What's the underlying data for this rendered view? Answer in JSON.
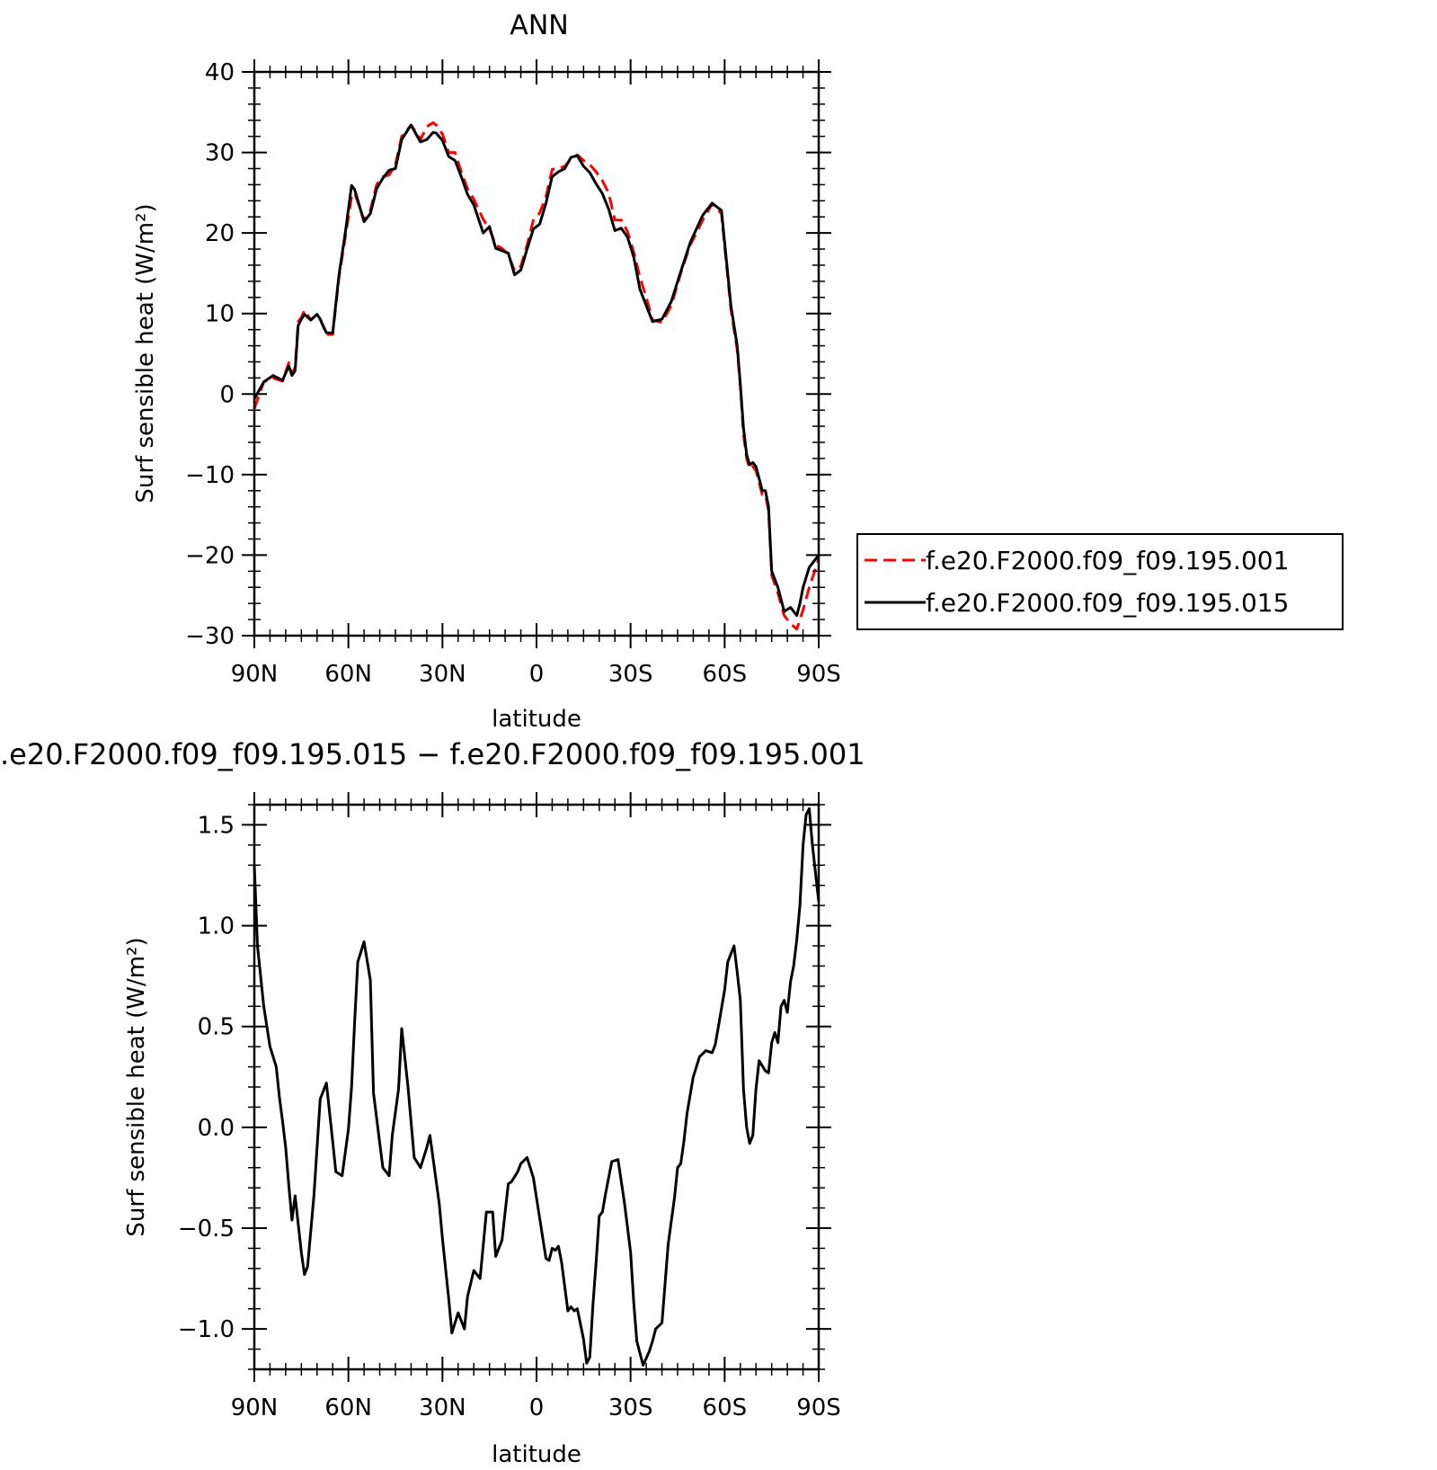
{
  "chart_data": [
    {
      "type": "line",
      "title": "ANN",
      "xlabel": "latitude",
      "ylabel": "Surf sensible heat (W/m²)",
      "xlim": [
        90,
        -90
      ],
      "ylim": [
        -30,
        40
      ],
      "x_ticks": [
        90,
        60,
        30,
        0,
        -30,
        -60,
        -90
      ],
      "x_tick_labels": [
        "90N",
        "60N",
        "30N",
        "0",
        "30S",
        "60S",
        "90S"
      ],
      "y_ticks": [
        -30,
        -20,
        -10,
        0,
        10,
        20,
        30,
        40
      ],
      "y_tick_labels": [
        "−30",
        "−20",
        "−10",
        "0",
        "10",
        "20",
        "30",
        "40"
      ],
      "legend_position": "right",
      "colors": {
        "red": "#ff0000",
        "black": "#000000"
      },
      "series": [
        {
          "name": "f.e20.F2000.f09_f09.195.001",
          "style": "dashed",
          "color": "#ff0000",
          "x": [
            90,
            87,
            84,
            81,
            79,
            78,
            77,
            76,
            75,
            74,
            72,
            70,
            69,
            67,
            65,
            63,
            61,
            59,
            58,
            55,
            53,
            51,
            49,
            47,
            45,
            43,
            40,
            38,
            37,
            35,
            33,
            32,
            30,
            28,
            26,
            24,
            22,
            20,
            17,
            15,
            13,
            11,
            9,
            7,
            5,
            3,
            1,
            -1,
            -3,
            -5,
            -7,
            -9,
            -11,
            -13,
            -15,
            -17,
            -19,
            -21,
            -23,
            -25,
            -27,
            -29,
            -31,
            -33,
            -35,
            -37,
            -40,
            -43,
            -46,
            -49,
            -51,
            -53,
            -56,
            -59,
            -62,
            -64,
            -65,
            -66,
            -67,
            -68,
            -69,
            -70,
            -71,
            -72,
            -73,
            -74,
            -75,
            -77,
            -79,
            -81,
            -83,
            -84,
            -85,
            -87,
            -90
          ],
          "y": [
            -1.8,
            1.5,
            2.0,
            1.6,
            3.9,
            2.5,
            3.3,
            9.0,
            9.5,
            10.4,
            9.2,
            9.9,
            9.3,
            7.4,
            7.4,
            14.5,
            19.5,
            24.5,
            25.0,
            21.6,
            22.8,
            26.0,
            27.0,
            27.2,
            28.5,
            32.0,
            33.4,
            32.3,
            31.6,
            33.2,
            33.7,
            33.4,
            32.3,
            30.0,
            30.0,
            27.6,
            25.5,
            24.2,
            21.7,
            20.5,
            18.5,
            18.1,
            17.3,
            15.3,
            15.9,
            18.5,
            21.6,
            22.5,
            24.5,
            27.9,
            28.0,
            28.3,
            29.2,
            29.7,
            29.0,
            28.5,
            27.6,
            26.5,
            25.0,
            21.6,
            21.6,
            20.2,
            17.6,
            14.5,
            12.0,
            9.2,
            8.9,
            11.0,
            15.0,
            18.5,
            20.0,
            21.6,
            23.6,
            22.4,
            10.5,
            5.5,
            1.0,
            -5.0,
            -8.0,
            -9.3,
            -9.0,
            -9.5,
            -11.0,
            -12.5,
            -12.5,
            -14.5,
            -22.5,
            -24.7,
            -27.5,
            -28.5,
            -29.2,
            -28.0,
            -26.8,
            -24.0,
            -20.5
          ]
        },
        {
          "name": "f.e20.F2000.f09_f09.195.015",
          "style": "solid",
          "color": "#000000",
          "x": [
            90,
            87,
            84,
            81,
            79,
            78,
            77,
            76,
            75,
            74,
            72,
            70,
            69,
            67,
            65,
            63,
            61,
            59,
            58,
            55,
            53,
            51,
            49,
            47,
            45,
            43,
            40,
            38,
            37,
            35,
            33,
            32,
            30,
            28,
            26,
            24,
            22,
            20,
            17,
            15,
            13,
            11,
            9,
            7,
            5,
            3,
            1,
            -1,
            -3,
            -5,
            -7,
            -9,
            -11,
            -13,
            -15,
            -17,
            -19,
            -21,
            -23,
            -25,
            -27,
            -29,
            -31,
            -33,
            -35,
            -37,
            -40,
            -43,
            -46,
            -49,
            -51,
            -53,
            -56,
            -59,
            -62,
            -64,
            -65,
            -66,
            -67,
            -68,
            -69,
            -70,
            -71,
            -72,
            -73,
            -74,
            -75,
            -77,
            -79,
            -81,
            -83,
            -84,
            -85,
            -87,
            -90
          ],
          "y": [
            -0.6,
            1.5,
            2.3,
            1.7,
            3.5,
            2.3,
            2.9,
            8.5,
            9.3,
            9.9,
            9.2,
            9.9,
            9.3,
            7.6,
            7.6,
            14.8,
            20.0,
            25.9,
            25.4,
            21.4,
            22.4,
            25.5,
            26.8,
            27.8,
            28.0,
            31.6,
            33.4,
            32.0,
            31.3,
            31.6,
            32.5,
            32.4,
            31.5,
            29.5,
            29.0,
            27.0,
            24.8,
            23.5,
            20.0,
            20.8,
            18.1,
            17.8,
            17.5,
            14.8,
            15.4,
            18.0,
            20.5,
            21.1,
            23.7,
            27.0,
            27.6,
            28.0,
            29.4,
            29.6,
            28.3,
            27.5,
            26.1,
            24.9,
            23.0,
            20.3,
            20.6,
            19.5,
            17.0,
            13.0,
            11.0,
            9.0,
            9.3,
            11.5,
            15.2,
            18.8,
            20.5,
            22.2,
            23.7,
            22.8,
            11.0,
            6.0,
            1.2,
            -4.2,
            -7.5,
            -8.8,
            -8.5,
            -9.0,
            -10.5,
            -12.0,
            -12.0,
            -14.0,
            -22.0,
            -24.0,
            -27.0,
            -26.5,
            -27.5,
            -26.0,
            -24.0,
            -21.5,
            -20.0
          ]
        }
      ]
    },
    {
      "type": "line",
      "title": ".e20.F2000.f09_f09.195.015 − f.e20.F2000.f09_f09.195.001",
      "xlabel": "latitude",
      "ylabel": "Surf sensible heat (W/m²)",
      "xlim": [
        90,
        -90
      ],
      "ylim": [
        -1.2,
        1.6
      ],
      "x_ticks": [
        90,
        60,
        30,
        0,
        -30,
        -60,
        -90
      ],
      "x_tick_labels": [
        "90N",
        "60N",
        "30N",
        "0",
        "30S",
        "60S",
        "90S"
      ],
      "y_ticks": [
        -1.0,
        -0.5,
        0.0,
        0.5,
        1.0,
        1.5
      ],
      "y_tick_labels": [
        "−1.0",
        "−0.5",
        "0.0",
        "0.5",
        "1.0",
        "1.5"
      ],
      "series": [
        {
          "color": "#000000",
          "x": [
            90,
            89,
            87,
            85,
            83,
            82,
            81,
            80,
            79,
            78,
            77,
            75,
            74,
            73,
            71,
            69,
            67,
            65,
            64,
            62,
            60,
            59,
            58,
            57,
            55,
            53,
            52,
            49,
            47,
            46,
            44,
            43,
            41,
            39,
            37,
            35,
            34,
            31,
            30,
            28,
            27,
            25,
            23,
            22,
            20,
            18,
            16,
            14,
            13,
            11,
            9,
            8,
            6,
            5,
            3,
            1,
            -1,
            -3,
            -4,
            -5,
            -6,
            -7,
            -8,
            -9,
            -10,
            -11,
            -12,
            -13,
            -15,
            -16,
            -17,
            -18,
            -19,
            -20,
            -21,
            -22,
            -24,
            -26,
            -28,
            -30,
            -31,
            -32,
            -34,
            -36,
            -37,
            -38,
            -40,
            -42,
            -44,
            -45,
            -46,
            -47,
            -48,
            -50,
            -52,
            -54,
            -56,
            -57,
            -58,
            -60,
            -61,
            -63,
            -64,
            -65,
            -66,
            -67,
            -68,
            -69,
            -70,
            -71,
            -73,
            -74,
            -75,
            -76,
            -77,
            -78,
            -79,
            -80,
            -81,
            -82,
            -83,
            -84,
            -85,
            -86,
            -87,
            -88,
            -90
          ],
          "y": [
            1.3,
            0.9,
            0.6,
            0.4,
            0.3,
            0.15,
            0.03,
            -0.1,
            -0.29,
            -0.46,
            -0.34,
            -0.62,
            -0.73,
            -0.69,
            -0.34,
            0.14,
            0.22,
            -0.07,
            -0.22,
            -0.24,
            -0.01,
            0.2,
            0.52,
            0.82,
            0.92,
            0.73,
            0.17,
            -0.2,
            -0.24,
            -0.04,
            0.19,
            0.49,
            0.2,
            -0.15,
            -0.2,
            -0.1,
            -0.04,
            -0.38,
            -0.55,
            -0.85,
            -1.02,
            -0.92,
            -1.0,
            -0.84,
            -0.71,
            -0.75,
            -0.42,
            -0.42,
            -0.64,
            -0.56,
            -0.28,
            -0.27,
            -0.22,
            -0.18,
            -0.15,
            -0.25,
            -0.45,
            -0.65,
            -0.66,
            -0.6,
            -0.61,
            -0.59,
            -0.67,
            -0.79,
            -0.91,
            -0.89,
            -0.91,
            -0.9,
            -1.05,
            -1.17,
            -1.14,
            -0.88,
            -0.67,
            -0.44,
            -0.42,
            -0.33,
            -0.17,
            -0.16,
            -0.37,
            -0.62,
            -0.87,
            -1.06,
            -1.18,
            -1.11,
            -1.06,
            -1.0,
            -0.97,
            -0.58,
            -0.35,
            -0.2,
            -0.18,
            -0.07,
            0.07,
            0.25,
            0.35,
            0.38,
            0.37,
            0.41,
            0.5,
            0.68,
            0.82,
            0.9,
            0.77,
            0.63,
            0.19,
            0.0,
            -0.08,
            -0.04,
            0.19,
            0.33,
            0.28,
            0.27,
            0.42,
            0.47,
            0.42,
            0.6,
            0.63,
            0.57,
            0.72,
            0.8,
            0.93,
            1.1,
            1.4,
            1.55,
            1.58,
            1.4,
            1.12
          ]
        }
      ]
    }
  ]
}
